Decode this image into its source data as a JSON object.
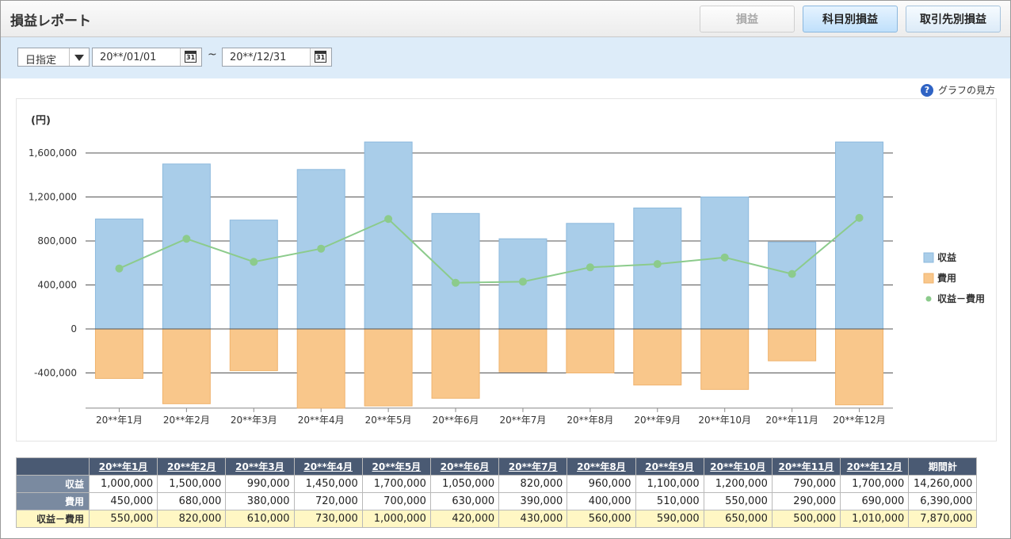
{
  "header": {
    "title": "損益レポート",
    "buttons": [
      {
        "label": "損益",
        "state": "disabled"
      },
      {
        "label": "科目別損益",
        "state": "active"
      },
      {
        "label": "取引先別損益",
        "state": "normal"
      }
    ]
  },
  "filter": {
    "mode_label": "日指定",
    "date_from": "20**/01/01",
    "separator": "~",
    "date_to": "20**/12/31"
  },
  "help_link": {
    "label": "グラフの見方",
    "icon": "question-circle-icon"
  },
  "colors": {
    "revenue": "#a9cde9",
    "expense": "#f9c78b",
    "net": "#8ccb8c"
  },
  "chart_data": {
    "type": "bar",
    "unit_label": "(円)",
    "categories": [
      "20**年1月",
      "20**年2月",
      "20**年3月",
      "20**年4月",
      "20**年5月",
      "20**年6月",
      "20**年7月",
      "20**年8月",
      "20**年9月",
      "20**年10月",
      "20**年11月",
      "20**年12月"
    ],
    "series": [
      {
        "name": "収益",
        "kind": "bar",
        "values": [
          1000000,
          1500000,
          990000,
          1450000,
          1700000,
          1050000,
          820000,
          960000,
          1100000,
          1200000,
          790000,
          1700000
        ]
      },
      {
        "name": "費用",
        "kind": "bar",
        "values": [
          -450000,
          -680000,
          -380000,
          -720000,
          -700000,
          -630000,
          -390000,
          -400000,
          -510000,
          -550000,
          -290000,
          -690000
        ]
      },
      {
        "name": "収益－費用",
        "kind": "line",
        "values": [
          550000,
          820000,
          610000,
          730000,
          1000000,
          420000,
          430000,
          560000,
          590000,
          650000,
          500000,
          1010000
        ]
      }
    ],
    "yticks": [
      1600000,
      1200000,
      800000,
      400000,
      0,
      -400000
    ],
    "ytick_labels": [
      "1,600,000",
      "1,200,000",
      "800,000",
      "400,000",
      "0",
      "-400,000"
    ],
    "ylim": [
      -720000,
      1700000
    ],
    "legend_position": "right"
  },
  "table": {
    "columns": [
      "20**年1月",
      "20**年2月",
      "20**年3月",
      "20**年4月",
      "20**年5月",
      "20**年6月",
      "20**年7月",
      "20**年8月",
      "20**年9月",
      "20**年10月",
      "20**年11月",
      "20**年12月",
      "期間計"
    ],
    "rows": [
      {
        "label": "収益",
        "values": [
          "1,000,000",
          "1,500,000",
          "990,000",
          "1,450,000",
          "1,700,000",
          "1,050,000",
          "820,000",
          "960,000",
          "1,100,000",
          "1,200,000",
          "790,000",
          "1,700,000",
          "14,260,000"
        ]
      },
      {
        "label": "費用",
        "values": [
          "450,000",
          "680,000",
          "380,000",
          "720,000",
          "700,000",
          "630,000",
          "390,000",
          "400,000",
          "510,000",
          "550,000",
          "290,000",
          "690,000",
          "6,390,000"
        ]
      },
      {
        "label": "収益－費用",
        "values": [
          "550,000",
          "820,000",
          "610,000",
          "730,000",
          "1,000,000",
          "420,000",
          "430,000",
          "560,000",
          "590,000",
          "650,000",
          "500,000",
          "1,010,000",
          "7,870,000"
        ]
      }
    ]
  }
}
